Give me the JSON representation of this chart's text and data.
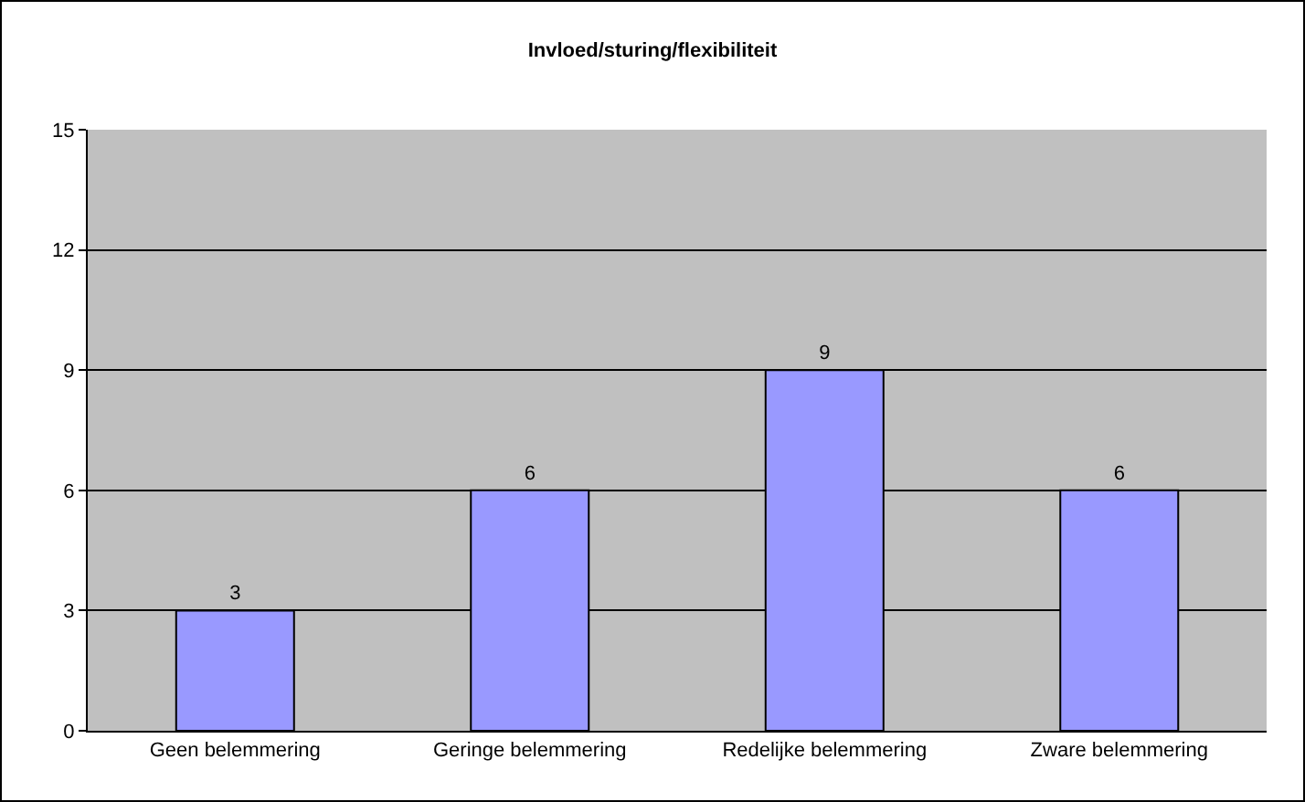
{
  "chart_data": {
    "type": "bar",
    "title": "Invloed/sturing/flexibiliteit",
    "categories": [
      "Geen belemmering",
      "Geringe belemmering",
      "Redelijke belemmering",
      "Zware belemmering"
    ],
    "values": [
      3,
      6,
      9,
      6
    ],
    "color": "#9999ff",
    "ylim": [
      0,
      15
    ],
    "yticks": [
      0,
      3,
      6,
      9,
      12,
      15
    ],
    "grid": "y",
    "data_labels": true
  }
}
